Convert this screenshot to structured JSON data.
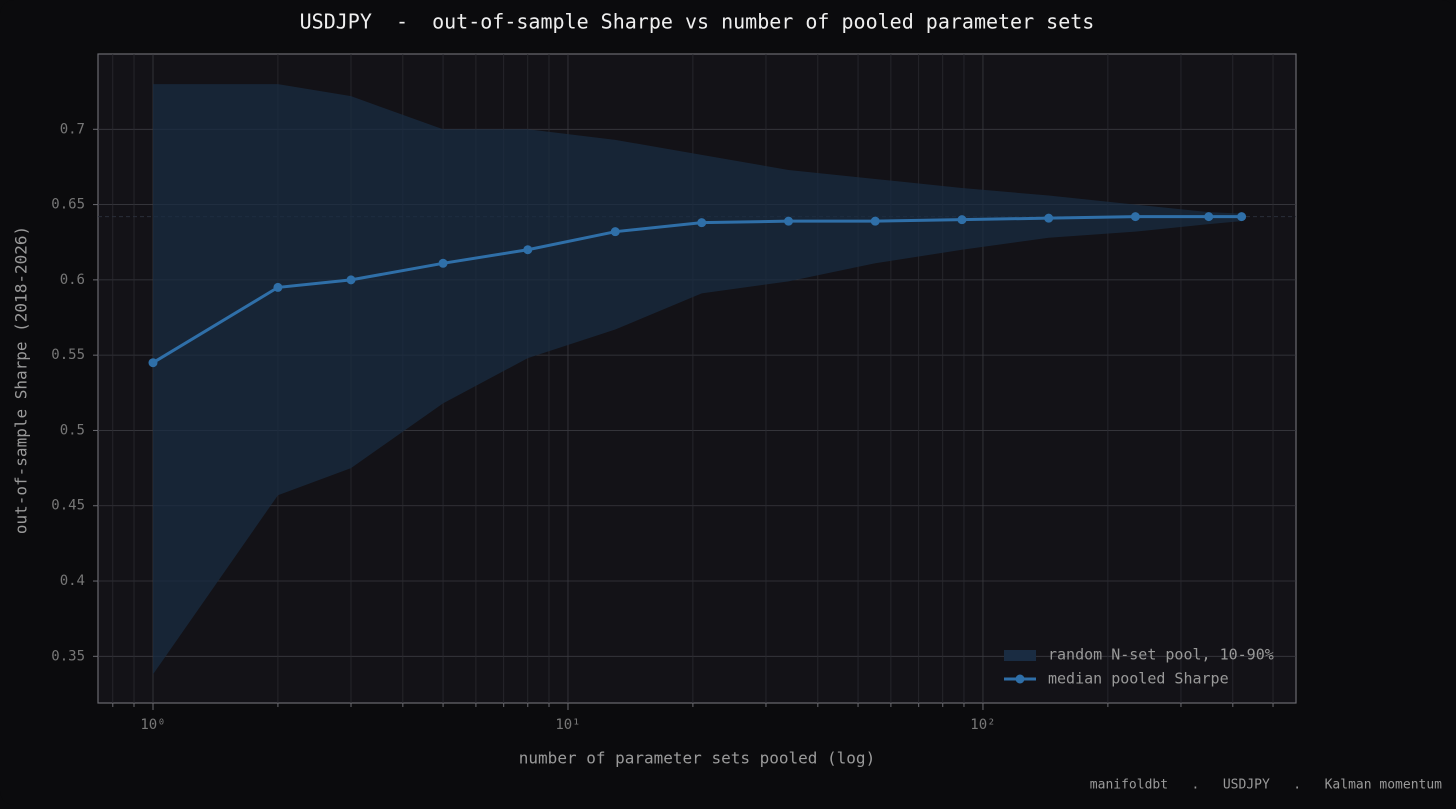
{
  "chart_data": {
    "type": "line",
    "title": "USDJPY  -  out-of-sample Sharpe vs number of pooled parameter sets",
    "x_label": "number of parameter sets pooled (log)",
    "y_label": "out-of-sample Sharpe (2018-2026)",
    "footer": "manifoldbt   .   USDJPY   .   Kalman momentum",
    "x": [
      1,
      2,
      3,
      5,
      8,
      13,
      21,
      34,
      55,
      89,
      144,
      233,
      350,
      420
    ],
    "series": [
      {
        "name": "random N-set pool, 10-90%",
        "type": "band",
        "color": "#1a2c42",
        "upper": [
          0.73,
          0.73,
          0.722,
          0.7,
          0.7,
          0.693,
          0.683,
          0.673,
          0.667,
          0.661,
          0.656,
          0.65,
          0.645,
          0.644
        ],
        "lower": [
          0.338,
          0.457,
          0.475,
          0.518,
          0.548,
          0.567,
          0.591,
          0.599,
          0.611,
          0.62,
          0.628,
          0.632,
          0.637,
          0.639
        ]
      },
      {
        "name": "median pooled Sharpe",
        "type": "line",
        "color": "#2f6fa8",
        "values": [
          0.545,
          0.595,
          0.6,
          0.611,
          0.62,
          0.632,
          0.638,
          0.639,
          0.639,
          0.64,
          0.641,
          0.642,
          0.642,
          0.642
        ]
      }
    ],
    "reference_line": 0.642,
    "x_log": true,
    "xlim": [
      0.737,
      568
    ],
    "xticks": [
      {
        "value": 1,
        "label": "10⁰"
      },
      {
        "value": 10,
        "label": "10¹"
      },
      {
        "value": 100,
        "label": "10²"
      }
    ],
    "xminor": [
      0.8,
      0.9,
      2,
      3,
      4,
      5,
      6,
      7,
      8,
      9,
      20,
      30,
      40,
      50,
      60,
      70,
      80,
      90,
      200,
      300,
      400,
      500
    ],
    "ylim": [
      0.319,
      0.75
    ],
    "yticks": [
      0.35,
      0.4,
      0.45,
      0.5,
      0.55,
      0.6,
      0.65,
      0.7
    ],
    "grid": true,
    "legend": "lower right"
  }
}
